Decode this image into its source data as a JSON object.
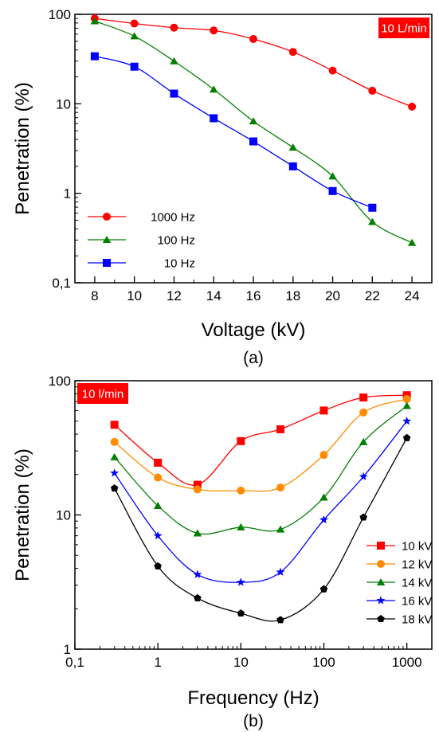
{
  "chart_data": [
    {
      "type": "line",
      "panel_label": "(a)",
      "badge": "10 L/min",
      "xlabel": "Voltage (kV)",
      "ylabel": "Penetration (%)",
      "xscale": "linear",
      "yscale": "log",
      "xlim": [
        7,
        25
      ],
      "ylim": [
        0.1,
        100
      ],
      "xticks": [
        8,
        10,
        12,
        14,
        16,
        18,
        20,
        22,
        24
      ],
      "xtick_labels": [
        "8",
        "10",
        "12",
        "14",
        "16",
        "18",
        "20",
        "22",
        "24"
      ],
      "yticks": [
        0.1,
        1,
        10,
        100
      ],
      "ytick_labels": [
        "0,1",
        "1",
        "10",
        "100"
      ],
      "legend_position": "lower-left",
      "series": [
        {
          "name": "1000 Hz",
          "color": "#ff0000",
          "marker": "circle",
          "x": [
            8,
            10,
            12,
            14,
            16,
            18,
            20,
            22,
            24
          ],
          "y": [
            90,
            79,
            71,
            66,
            53,
            38,
            23.5,
            14,
            9.3
          ]
        },
        {
          "name": "100 Hz",
          "color": "#008000",
          "marker": "triangle",
          "x": [
            8,
            10,
            12,
            14,
            16,
            18,
            20,
            22,
            24
          ],
          "y": [
            84,
            57,
            30,
            14.5,
            6.4,
            3.25,
            1.55,
            0.48,
            0.28
          ]
        },
        {
          "name": "10 Hz",
          "color": "#0000ff",
          "marker": "square",
          "x": [
            8,
            10,
            12,
            14,
            16,
            18,
            20,
            22
          ],
          "y": [
            34,
            26,
            13,
            6.9,
            3.8,
            2.0,
            1.06,
            0.69
          ]
        }
      ]
    },
    {
      "type": "line",
      "panel_label": "(b)",
      "badge": "10 l/min",
      "xlabel": "Frequency (Hz)",
      "ylabel": "Penetration (%)",
      "xscale": "log",
      "yscale": "log",
      "xlim": [
        0.1,
        2000
      ],
      "ylim": [
        1,
        100
      ],
      "xticks": [
        0.1,
        1,
        10,
        100,
        1000
      ],
      "xtick_labels": [
        "0,1",
        "1",
        "10",
        "100",
        "1000"
      ],
      "yticks": [
        1,
        10,
        100
      ],
      "ytick_labels": [
        "1",
        "10",
        "100"
      ],
      "legend_position": "lower-right",
      "series": [
        {
          "name": "10 kV",
          "color": "#ff0000",
          "marker": "square",
          "x": [
            0.3,
            1,
            3,
            10,
            30,
            100,
            300,
            1000
          ],
          "y": [
            47,
            24.5,
            16.8,
            35.5,
            43.5,
            60,
            75,
            78
          ]
        },
        {
          "name": "12 kV",
          "color": "#ff8c00",
          "marker": "circle",
          "x": [
            0.3,
            1,
            3,
            10,
            30,
            100,
            300,
            1000
          ],
          "y": [
            35,
            19,
            15.5,
            15.2,
            16,
            28,
            58,
            73
          ]
        },
        {
          "name": "14 kV",
          "color": "#008000",
          "marker": "triangle",
          "x": [
            0.3,
            1,
            3,
            10,
            30,
            100,
            300,
            1000
          ],
          "y": [
            27,
            11.7,
            7.3,
            8.1,
            7.8,
            13.5,
            35,
            65
          ]
        },
        {
          "name": "16 kV",
          "color": "#0000ff",
          "marker": "star",
          "x": [
            0.3,
            1,
            3,
            10,
            30,
            100,
            300,
            1000
          ],
          "y": [
            20.5,
            7.0,
            3.6,
            3.15,
            3.75,
            9.2,
            19.3,
            50
          ]
        },
        {
          "name": "18 kV",
          "color": "#000000",
          "marker": "pentagon",
          "x": [
            0.3,
            1,
            3,
            10,
            30,
            100,
            300,
            1000
          ],
          "y": [
            15.8,
            4.15,
            2.4,
            1.85,
            1.65,
            2.8,
            9.6,
            37.5
          ]
        }
      ]
    }
  ]
}
